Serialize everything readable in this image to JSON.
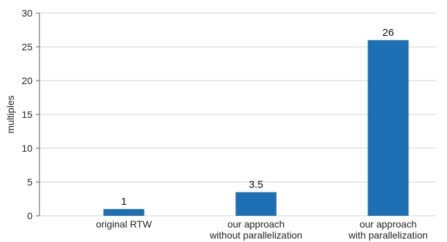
{
  "chart_data": {
    "type": "bar",
    "categories": [
      [
        "original RTW"
      ],
      [
        "our approach",
        "without parallelization"
      ],
      [
        "our approach",
        "with parallelization"
      ]
    ],
    "values": [
      1,
      3.5,
      26
    ],
    "data_labels": [
      "1",
      "3.5",
      "26"
    ],
    "ylabel": "multiples",
    "ylim": [
      0,
      30
    ],
    "yticks": [
      0,
      5,
      10,
      15,
      20,
      25,
      30
    ],
    "grid": true,
    "bar_color": "#1f6fb4",
    "grid_color": "#d0d0d0"
  }
}
